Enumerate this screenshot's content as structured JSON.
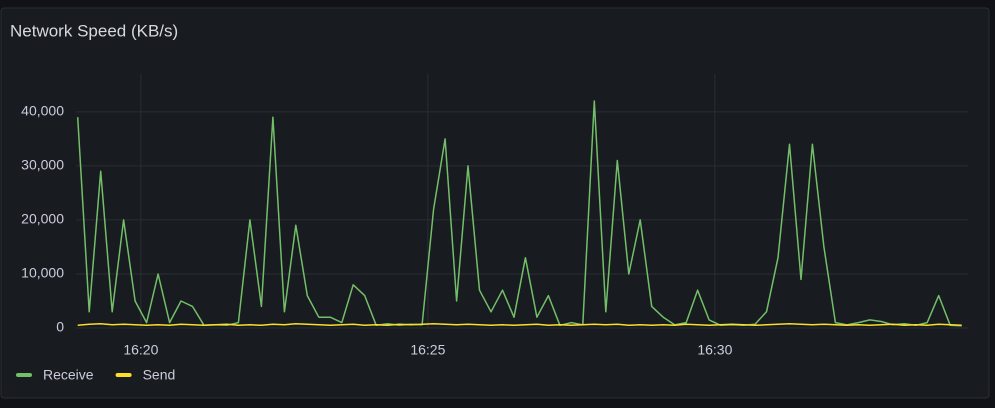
{
  "chart_data": {
    "type": "line",
    "title": "Network Speed (KB/s)",
    "x": [
      978.9,
      979.1,
      979.3,
      979.5,
      979.7,
      979.9,
      980.1,
      980.3,
      980.5,
      980.7,
      980.9,
      981.1,
      981.3,
      981.5,
      981.7,
      981.9,
      982.1,
      982.3,
      982.5,
      982.7,
      982.9,
      983.1,
      983.3,
      983.5,
      983.7,
      983.9,
      984.1,
      984.3,
      984.5,
      984.7,
      984.9,
      985.1,
      985.3,
      985.5,
      985.7,
      985.9,
      986.1,
      986.3,
      986.5,
      986.7,
      986.9,
      987.1,
      987.3,
      987.5,
      987.7,
      987.9,
      988.1,
      988.3,
      988.5,
      988.7,
      988.9,
      989.1,
      989.3,
      989.5,
      989.7,
      989.9,
      990.1,
      990.3,
      990.5,
      990.7,
      990.9,
      991.1,
      991.3,
      991.5,
      991.7,
      991.9,
      992.1,
      992.3,
      992.5,
      992.7,
      992.9,
      993.1,
      993.3,
      993.5,
      993.7,
      993.9,
      994.1,
      994.3
    ],
    "series": [
      {
        "name": "Receive",
        "color": "#73bf69",
        "values": [
          39000,
          3000,
          29000,
          3000,
          20000,
          5000,
          1000,
          10000,
          1000,
          5000,
          4000,
          500,
          600,
          500,
          1000,
          20000,
          4000,
          39000,
          3000,
          19000,
          6000,
          2000,
          2000,
          1000,
          8000,
          6000,
          500,
          800,
          500,
          700,
          600,
          22000,
          35000,
          5000,
          30000,
          7000,
          3000,
          7000,
          2000,
          13000,
          2000,
          6000,
          500,
          1000,
          600,
          42000,
          3000,
          31000,
          10000,
          20000,
          4000,
          2000,
          600,
          1000,
          7000,
          1500,
          500,
          600,
          500,
          700,
          3000,
          13000,
          34000,
          9000,
          34000,
          15000,
          1000,
          600,
          1000,
          1500,
          1200,
          600,
          800,
          500,
          1000,
          6000,
          500,
          400
        ]
      },
      {
        "name": "Send",
        "color": "#fade2a",
        "values": [
          500,
          700,
          800,
          600,
          700,
          600,
          500,
          600,
          500,
          700,
          600,
          500,
          600,
          700,
          500,
          600,
          500,
          700,
          600,
          800,
          700,
          600,
          500,
          600,
          700,
          500,
          600,
          500,
          700,
          600,
          700,
          800,
          700,
          600,
          700,
          600,
          500,
          600,
          500,
          600,
          700,
          500,
          600,
          500,
          600,
          700,
          600,
          700,
          500,
          600,
          500,
          600,
          500,
          700,
          600,
          500,
          600,
          700,
          600,
          500,
          600,
          700,
          800,
          700,
          600,
          700,
          600,
          500,
          600,
          500,
          600,
          700,
          500,
          600,
          500,
          700,
          600,
          500
        ]
      }
    ],
    "xlim": [
      978.87,
      994.41
    ],
    "ylim": [
      0,
      47000
    ],
    "xticks": [
      {
        "value": 980,
        "label": "16:20"
      },
      {
        "value": 985,
        "label": "16:25"
      },
      {
        "value": 990,
        "label": "16:30"
      }
    ],
    "yticks": [
      0,
      {
        "value": 10000,
        "label": "10,000"
      },
      {
        "value": 20000,
        "label": "20,000"
      },
      {
        "value": 30000,
        "label": "30,000"
      },
      {
        "value": 40000,
        "label": "40,000"
      }
    ],
    "grid": true
  }
}
